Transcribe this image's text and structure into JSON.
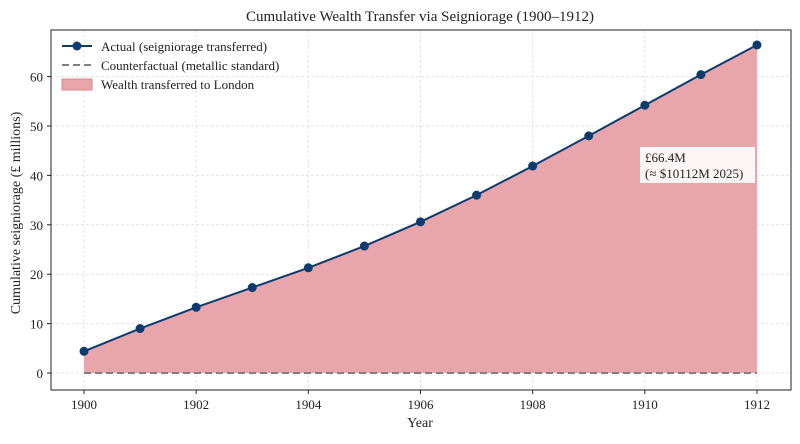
{
  "chart_data": {
    "type": "area",
    "title": "Cumulative Wealth Transfer via Seigniorage (1900–1912)",
    "xlabel": "Year",
    "ylabel": "Cumulative seigniorage (£ millions)",
    "x": [
      1900,
      1901,
      1902,
      1903,
      1904,
      1905,
      1906,
      1907,
      1908,
      1909,
      1910,
      1911,
      1912
    ],
    "xticks": [
      "1900",
      "1902",
      "1904",
      "1906",
      "1908",
      "1910",
      "1912"
    ],
    "yticks": [
      "0",
      "10",
      "20",
      "30",
      "40",
      "50",
      "60"
    ],
    "xlim": [
      1899.4,
      1912.6
    ],
    "ylim": [
      -3.3,
      69.8
    ],
    "grid": true,
    "legend_position": "top-left",
    "series": [
      {
        "name": "Actual (seigniorage transferred)",
        "values": [
          4.4,
          9.0,
          13.3,
          17.3,
          21.3,
          25.7,
          30.6,
          36.0,
          41.9,
          48.0,
          54.2,
          60.4,
          66.4
        ],
        "color": "#0d3b6e",
        "style": "line-marker"
      },
      {
        "name": "Counterfactual (metallic standard)",
        "values": [
          0,
          0,
          0,
          0,
          0,
          0,
          0,
          0,
          0,
          0,
          0,
          0,
          0
        ],
        "color": "#808080",
        "style": "dashed"
      },
      {
        "name": "Wealth transferred to London",
        "color": "#e8a5ab",
        "style": "fill-between"
      }
    ],
    "annotation": {
      "line1": "£66.4M",
      "line2": "(≈ $10112M 2025)",
      "x": 1910,
      "y": 40
    }
  }
}
